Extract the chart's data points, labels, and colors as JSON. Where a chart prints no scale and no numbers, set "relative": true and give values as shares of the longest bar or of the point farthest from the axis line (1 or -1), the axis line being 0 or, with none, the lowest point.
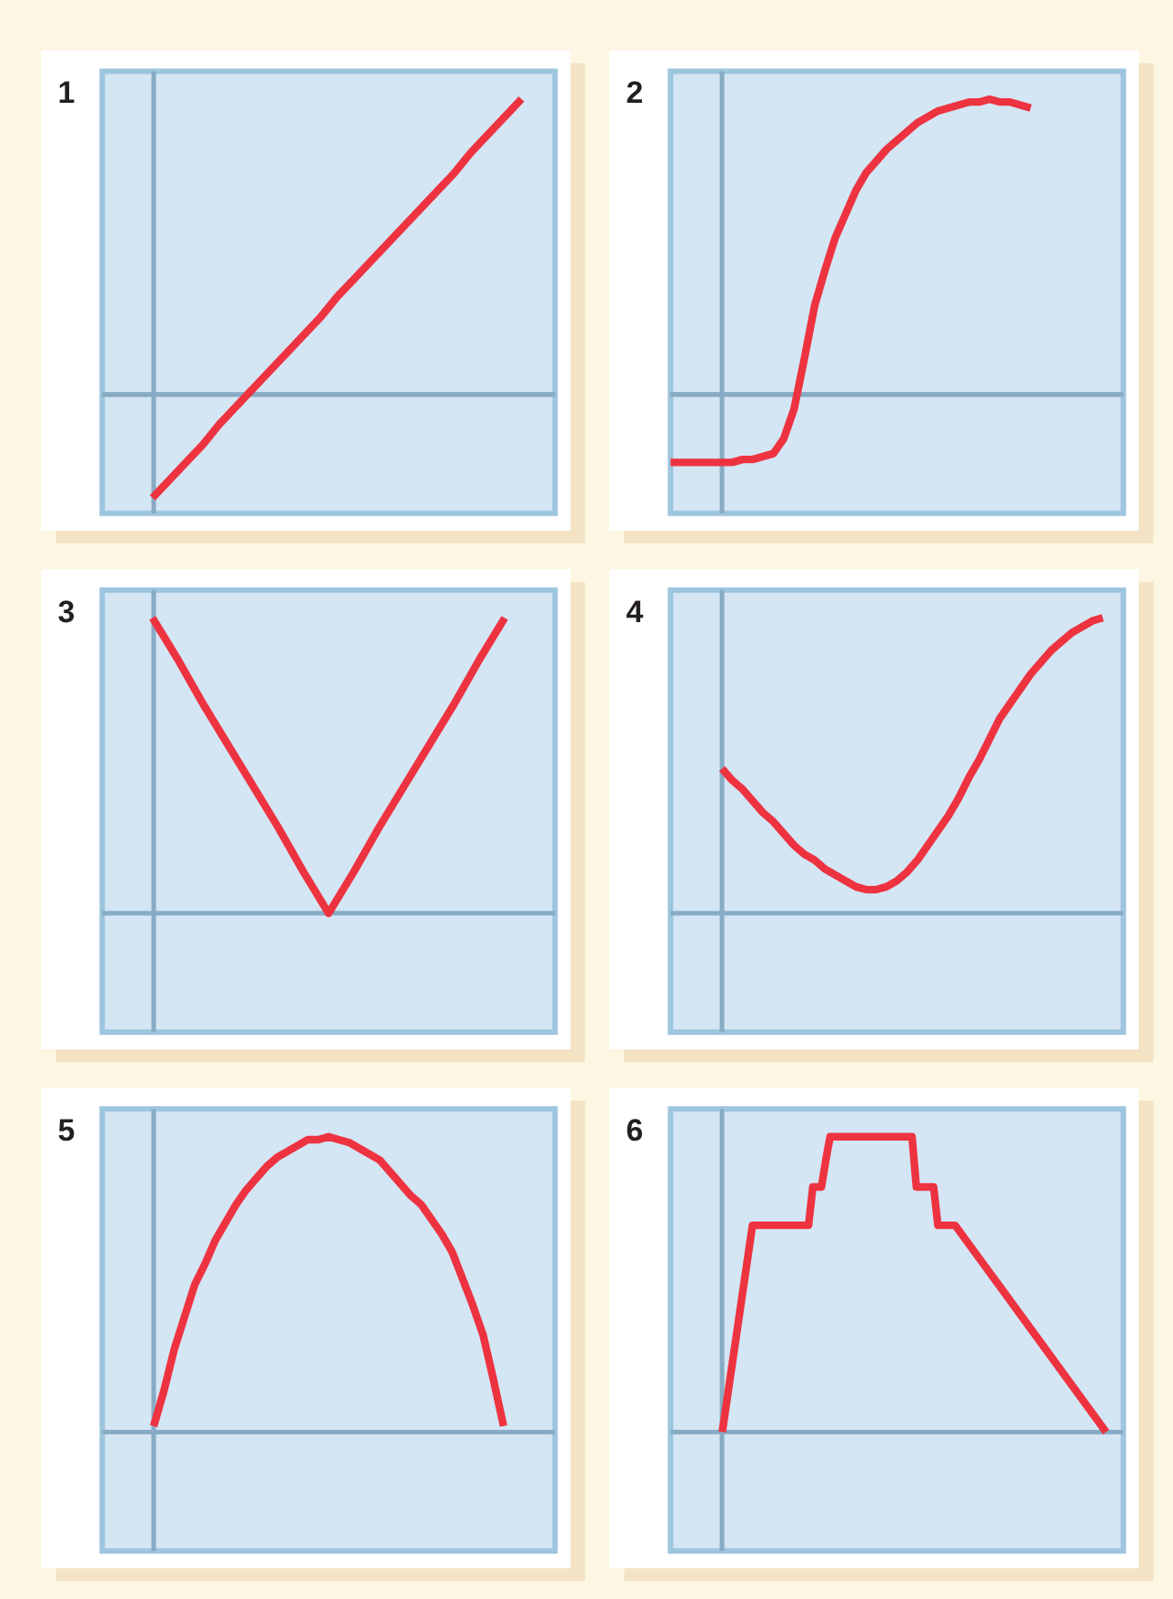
{
  "chart_data": [
    {
      "type": "line",
      "title": "1",
      "relative": true,
      "color": "#ee3340",
      "categories": [
        null,
        null,
        null,
        null,
        null,
        null,
        null,
        null,
        null,
        null,
        null,
        null,
        null,
        null,
        null,
        null,
        null,
        null,
        null,
        null,
        null,
        null,
        null,
        null,
        null,
        null,
        null,
        null
      ],
      "values": [
        null,
        null,
        null,
        -0.35,
        -0.29,
        -0.23,
        -0.17,
        -0.1,
        -0.04,
        0.02,
        0.08,
        0.14,
        0.2,
        0.26,
        0.33,
        0.39,
        0.45,
        0.51,
        0.57,
        0.63,
        0.69,
        0.75,
        0.82,
        0.88,
        0.94,
        1,
        null,
        null
      ],
      "ref_lines": [
        {
          "axis": "y",
          "value": 0,
          "color": "#87abc4"
        }
      ]
    },
    {
      "type": "line",
      "title": "2",
      "relative": true,
      "color": "#ee3340",
      "categories": [
        null,
        null,
        null,
        null,
        null,
        null,
        null,
        null,
        null,
        null,
        null,
        null,
        null,
        null,
        null,
        null,
        null,
        null,
        null,
        null,
        null,
        null,
        null,
        null,
        null,
        null,
        null,
        null,
        null,
        null,
        null,
        null,
        null,
        null,
        null,
        null,
        null,
        null,
        null,
        null,
        null,
        null,
        null,
        null,
        null
      ],
      "values": [
        -0.23,
        -0.23,
        -0.23,
        -0.23,
        -0.23,
        -0.23,
        -0.23,
        -0.22,
        -0.22,
        -0.21,
        -0.2,
        -0.15,
        -0.05,
        0.12,
        0.3,
        0.42,
        0.53,
        0.61,
        0.69,
        0.75,
        0.79,
        0.83,
        0.86,
        0.89,
        0.92,
        0.94,
        0.96,
        0.97,
        0.98,
        0.99,
        0.99,
        1,
        0.99,
        0.99,
        0.98,
        0.97,
        null,
        null,
        null,
        null,
        null,
        null,
        null,
        null,
        null
      ],
      "ref_lines": [
        {
          "axis": "y",
          "value": 0,
          "color": "#87abc4"
        }
      ]
    },
    {
      "type": "line",
      "title": "3",
      "relative": true,
      "color": "#ee3340",
      "categories": [
        null,
        null,
        null,
        null,
        null,
        null,
        null,
        null,
        null,
        null,
        null,
        null,
        null,
        null,
        null,
        null,
        null,
        null,
        null
      ],
      "values": [
        null,
        null,
        1,
        0.86,
        0.71,
        0.57,
        0.43,
        0.29,
        0.14,
        0,
        0.14,
        0.29,
        0.43,
        0.57,
        0.71,
        0.86,
        1,
        null,
        null
      ]
    },
    {
      "type": "line",
      "title": "4",
      "relative": true,
      "color": "#ee3340",
      "categories": [
        null,
        null,
        null,
        null,
        null,
        null,
        null,
        null,
        null,
        null,
        null,
        null,
        null,
        null,
        null,
        null,
        null,
        null,
        null,
        null,
        null,
        null,
        null,
        null,
        null,
        null,
        null,
        null,
        null,
        null,
        null,
        null,
        null,
        null,
        null,
        null,
        null,
        null,
        null,
        null,
        null,
        null,
        null,
        null,
        null
      ],
      "values": [
        null,
        null,
        null,
        null,
        null,
        0.49,
        0.45,
        0.42,
        0.38,
        0.34,
        0.31,
        0.27,
        0.23,
        0.2,
        0.18,
        0.15,
        0.13,
        0.11,
        0.09,
        0.08,
        0.08,
        0.09,
        0.11,
        0.14,
        0.18,
        0.23,
        0.28,
        0.33,
        0.39,
        0.46,
        0.52,
        0.59,
        0.66,
        0.71,
        0.76,
        0.81,
        0.85,
        0.89,
        0.92,
        0.95,
        0.97,
        0.99,
        1,
        null,
        null
      ]
    },
    {
      "type": "line",
      "title": "5",
      "relative": true,
      "color": "#ee3340",
      "categories": [
        null,
        null,
        null,
        null,
        null,
        null,
        null,
        null,
        null,
        null,
        null,
        null,
        null,
        null,
        null,
        null,
        null,
        null,
        null,
        null,
        null,
        null,
        null,
        null,
        null,
        null,
        null,
        null,
        null,
        null,
        null,
        null,
        null,
        null,
        null,
        null,
        null,
        null,
        null,
        null,
        null,
        null,
        null,
        null,
        null
      ],
      "values": [
        null,
        null,
        null,
        null,
        null,
        0.02,
        0.14,
        0.28,
        0.39,
        0.5,
        0.57,
        0.65,
        0.71,
        0.77,
        0.82,
        0.86,
        0.9,
        0.93,
        0.95,
        0.97,
        0.99,
        0.99,
        1,
        0.99,
        0.98,
        0.96,
        0.94,
        0.92,
        0.88,
        0.84,
        0.8,
        0.77,
        0.72,
        0.67,
        0.61,
        0.52,
        0.43,
        0.33,
        0.18,
        0.02,
        null,
        null,
        null,
        null,
        null
      ]
    },
    {
      "type": "line",
      "title": "6",
      "relative": true,
      "color": "#ee3340",
      "categories": [
        null,
        null,
        null,
        null,
        null,
        null,
        null,
        null,
        null,
        null,
        null,
        null,
        null,
        null,
        null,
        null,
        null,
        null,
        null,
        null,
        null,
        null,
        null,
        null,
        null,
        null,
        null,
        null,
        null,
        null,
        null,
        null,
        null,
        null,
        null,
        null,
        null,
        null,
        null,
        null,
        null,
        null,
        null,
        null,
        null,
        null,
        null,
        null,
        null,
        null,
        null,
        null,
        null,
        null,
        null,
        null,
        null,
        null,
        null,
        null,
        null,
        null,
        null,
        null,
        null,
        null,
        null,
        null,
        null,
        null,
        null,
        null,
        null,
        null,
        null,
        null,
        null,
        null,
        null,
        null,
        null,
        null,
        null,
        null,
        null,
        null,
        null,
        null,
        null,
        null,
        null,
        null,
        null,
        null,
        null,
        null,
        null,
        null,
        null,
        null,
        null,
        null,
        null,
        null,
        null,
        null
      ],
      "values": [
        null,
        null,
        null,
        null,
        null,
        null,
        null,
        null,
        null,
        null,
        null,
        null,
        0,
        0.1,
        0.2,
        0.3,
        0.4,
        0.5,
        0.6,
        0.7,
        0.7,
        0.7,
        0.7,
        0.7,
        0.7,
        0.7,
        0.7,
        0.7,
        0.7,
        0.7,
        0.7,
        0.7,
        0.7,
        0.83,
        0.83,
        0.83,
        0.92,
        1,
        1,
        1,
        1,
        1,
        1,
        1,
        1,
        1,
        1,
        1,
        1,
        1,
        1,
        1,
        1,
        1,
        1,
        1,
        1,
        0.83,
        0.83,
        0.83,
        0.83,
        0.83,
        0.7,
        0.7,
        0.7,
        0.7,
        0.7,
        0.68,
        0.66,
        0.64,
        0.62,
        0.6,
        0.58,
        0.56,
        0.54,
        0.52,
        0.5,
        0.48,
        0.46,
        0.44,
        0.42,
        0.4,
        0.38,
        0.36,
        0.34,
        0.32,
        0.3,
        0.28,
        0.26,
        0.24,
        0.22,
        0.2,
        0.18,
        0.16,
        0.14,
        0.12,
        0.1,
        0.08,
        0.06,
        0.04,
        0.02,
        0,
        null,
        null,
        null,
        null
      ]
    }
  ]
}
